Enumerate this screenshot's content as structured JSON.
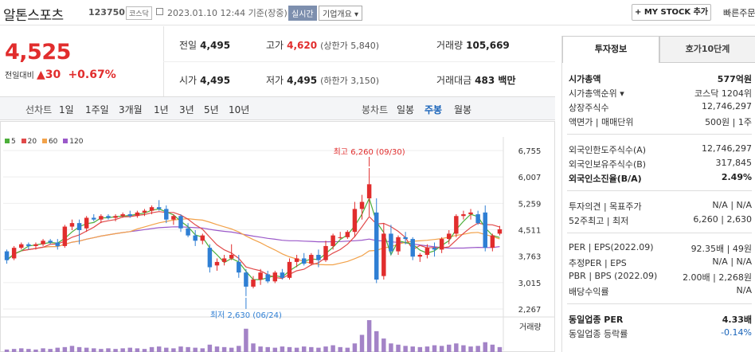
{
  "header": {
    "name": "알톤스포츠",
    "code": "123750",
    "market": "코스닥",
    "date": "2023.01.10 12:44  기준(장중)",
    "realtime": "실시간",
    "corp_info": "기업개요 ▾",
    "mystock": "+ MY STOCK 추가",
    "quick": "빠른주문"
  },
  "summary": {
    "price": "4,525",
    "change_label": "전일대비",
    "change": "▲30",
    "pct": "+0.67%",
    "prev_label": "전일",
    "prev": "4,495",
    "high_label": "고가",
    "high": "4,620",
    "upper": "(상한가 5,840)",
    "volume_label": "거래량",
    "volume": "105,669",
    "open_label": "시가",
    "open": "4,495",
    "low_label": "저가",
    "low": "4,495",
    "lower": "(하한가 3,150)",
    "amount_label": "거래대금",
    "amount": "483 백만"
  },
  "toolbar": {
    "line_label": "선차트",
    "line_items": [
      "1일",
      "1주일",
      "3개월",
      "1년",
      "3년",
      "5년",
      "10년"
    ],
    "candle_label": "봉차트",
    "candle_items": [
      "일봉",
      "주봉",
      "월봉"
    ],
    "active": "주봉"
  },
  "chart_data": {
    "type": "candlestick",
    "legend": [
      {
        "name": "5",
        "color": "#4caf3a"
      },
      {
        "name": "20",
        "color": "#e14a4a"
      },
      {
        "name": "60",
        "color": "#f2a24a"
      },
      {
        "name": "120",
        "color": "#9b59c9"
      }
    ],
    "y_ticks": [
      "6,755",
      "6,007",
      "5,259",
      "4,511",
      "3,763",
      "3,015",
      "2,267"
    ],
    "ylim": [
      2267,
      6755
    ],
    "high_label": "최고 6,260 (09/30)",
    "low_label": "최저 2,630 (06/24)",
    "volume_label": "거래량",
    "candles": [
      [
        3900,
        3950,
        3550,
        3650
      ],
      [
        3700,
        4050,
        3650,
        4000
      ],
      [
        4000,
        4150,
        3950,
        4100
      ],
      [
        4100,
        4150,
        3950,
        4050
      ],
      [
        4050,
        4150,
        3950,
        4100
      ],
      [
        4100,
        4250,
        4050,
        4200
      ],
      [
        4200,
        4250,
        4100,
        4150
      ],
      [
        4150,
        4250,
        3950,
        4050
      ],
      [
        4050,
        4650,
        4000,
        4600
      ],
      [
        4600,
        4800,
        4500,
        4700
      ],
      [
        4700,
        4800,
        4100,
        4500
      ],
      [
        4550,
        4900,
        4450,
        4850
      ],
      [
        4850,
        4950,
        4750,
        4800
      ],
      [
        4800,
        4950,
        4700,
        4900
      ],
      [
        4900,
        4950,
        4800,
        4850
      ],
      [
        4850,
        4950,
        4750,
        4900
      ],
      [
        4900,
        5000,
        4850,
        4950
      ],
      [
        4950,
        5050,
        4850,
        4900
      ],
      [
        4900,
        5050,
        4850,
        5000
      ],
      [
        5000,
        5100,
        4900,
        5050
      ],
      [
        5050,
        5200,
        4950,
        5150
      ],
      [
        5150,
        5350,
        5050,
        5100
      ],
      [
        5100,
        5200,
        4700,
        4800
      ],
      [
        4800,
        4950,
        4650,
        4900
      ],
      [
        4900,
        4950,
        4450,
        4550
      ],
      [
        4550,
        4700,
        4300,
        4350
      ],
      [
        4350,
        4500,
        4050,
        4200
      ],
      [
        4200,
        4400,
        4100,
        4350
      ],
      [
        4000,
        4100,
        3300,
        3450
      ],
      [
        3500,
        3700,
        3350,
        3600
      ],
      [
        3600,
        3800,
        3500,
        3700
      ],
      [
        3700,
        4100,
        3650,
        3800
      ],
      [
        3600,
        3800,
        3150,
        3300
      ],
      [
        3300,
        3400,
        2630,
        2900
      ],
      [
        2900,
        3200,
        2850,
        3100
      ],
      [
        3100,
        3400,
        2950,
        3300
      ],
      [
        3250,
        3350,
        3000,
        3050
      ],
      [
        3050,
        3350,
        3000,
        3300
      ],
      [
        3300,
        3400,
        3100,
        3150
      ],
      [
        3150,
        3700,
        3100,
        3600
      ],
      [
        3600,
        3800,
        3450,
        3700
      ],
      [
        3700,
        3850,
        3500,
        3550
      ],
      [
        3550,
        3850,
        3500,
        3800
      ],
      [
        3800,
        3950,
        3450,
        3650
      ],
      [
        3650,
        4200,
        3600,
        4050
      ],
      [
        4050,
        4400,
        3950,
        4350
      ],
      [
        4300,
        4450,
        4250,
        4300
      ],
      [
        4300,
        4500,
        4250,
        4450
      ],
      [
        4450,
        5300,
        4300,
        5100
      ],
      [
        5100,
        5500,
        4800,
        5300
      ],
      [
        5400,
        6260,
        4900,
        5800
      ],
      [
        5000,
        5400,
        3000,
        3100
      ],
      [
        3200,
        4700,
        3100,
        4400
      ],
      [
        4400,
        4650,
        3800,
        3900
      ],
      [
        3900,
        4350,
        3800,
        4300
      ],
      [
        4300,
        4450,
        4100,
        4250
      ],
      [
        4250,
        4300,
        3650,
        3750
      ],
      [
        3750,
        3850,
        3600,
        3800
      ],
      [
        3800,
        4100,
        3700,
        4000
      ],
      [
        4000,
        4150,
        3750,
        3950
      ],
      [
        3950,
        4300,
        3850,
        4250
      ],
      [
        4250,
        4500,
        4100,
        4400
      ],
      [
        4400,
        4950,
        4300,
        4900
      ],
      [
        4900,
        5050,
        4800,
        4950
      ],
      [
        4950,
        5100,
        4800,
        5000
      ],
      [
        4950,
        5050,
        4650,
        4700
      ],
      [
        5000,
        5200,
        3900,
        4000
      ],
      [
        4000,
        4400,
        3900,
        4350
      ],
      [
        4400,
        4620,
        4350,
        4525
      ]
    ],
    "volume": [
      4,
      5,
      6,
      5,
      4,
      6,
      5,
      7,
      8,
      10,
      8,
      7,
      6,
      5,
      6,
      5,
      6,
      7,
      6,
      5,
      8,
      9,
      7,
      6,
      9,
      8,
      7,
      6,
      12,
      9,
      8,
      7,
      10,
      38,
      14,
      9,
      8,
      7,
      9,
      8,
      7,
      9,
      8,
      7,
      9,
      11,
      8,
      7,
      14,
      28,
      52,
      34,
      22,
      14,
      12,
      10,
      9,
      8,
      9,
      11,
      10,
      12,
      14,
      11,
      9,
      10,
      16,
      12,
      8
    ]
  },
  "right": {
    "tab_active": "투자정보",
    "tab_other": "호가10단계",
    "rows": [
      {
        "l": "시가총액",
        "r": "577억원",
        "bold": true
      },
      {
        "l": "시가총액순위 ▾",
        "r": "코스닥 1204위"
      },
      {
        "l": "상장주식수",
        "r": "12,746,297"
      },
      {
        "l": "액면가 | 매매단위",
        "r": "500원 | 1주"
      },
      {
        "l": "외국인한도주식수(A)",
        "r": "12,746,297"
      },
      {
        "l": "외국인보유주식수(B)",
        "r": "317,845"
      },
      {
        "l": "외국인소진율(B/A)",
        "r": "2.49%",
        "bold": true
      },
      {
        "l": "투자의견 | 목표주가",
        "r": "N/A | N/A"
      },
      {
        "l": "52주최고 | 최저",
        "r": "6,260 | 2,630"
      },
      {
        "l": "PER | EPS(2022.09)",
        "r": "92.35배 | 49원"
      },
      {
        "l": "추정PER | EPS",
        "r": "N/A | N/A"
      },
      {
        "l": "PBR | BPS (2022.09)",
        "r": "2.00배 | 2,268원"
      },
      {
        "l": "배당수익률",
        "r": "N/A"
      },
      {
        "l": "동일업종 PER",
        "r": "4.33배",
        "bold": true
      },
      {
        "l": "동일업종 등락률",
        "r": "-0.14%",
        "blue": true
      }
    ]
  }
}
